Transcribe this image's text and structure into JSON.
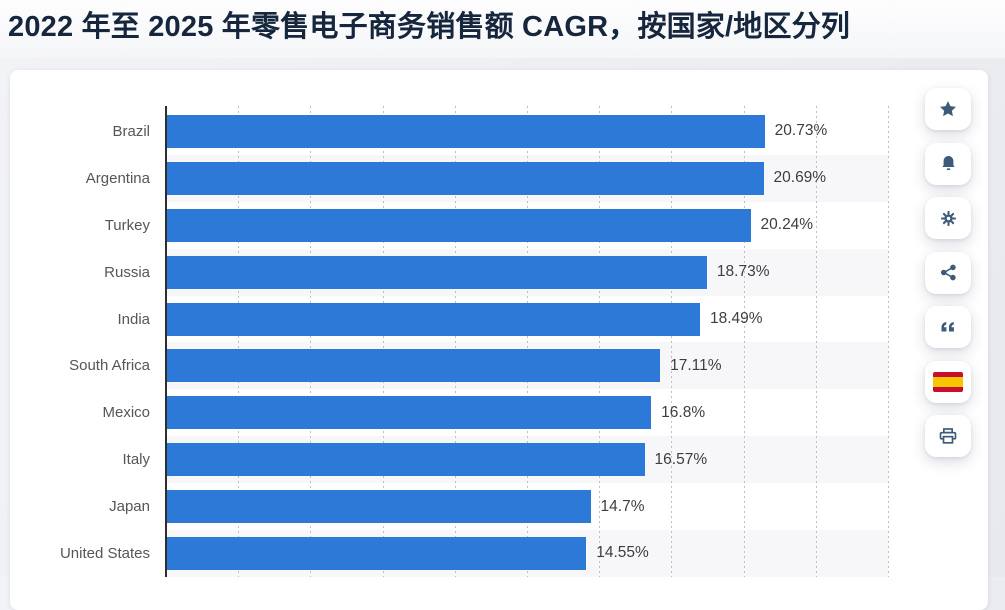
{
  "title": "2022 年至 2025 年零售电子商务销售额 CAGR，按国家/地区分列",
  "chart_data": {
    "type": "bar",
    "orientation": "horizontal",
    "title": "2022 年至 2025 年零售电子商务销售额 CAGR，按国家/地区分列",
    "categories": [
      "Brazil",
      "Argentina",
      "Turkey",
      "Russia",
      "India",
      "South Africa",
      "Mexico",
      "Italy",
      "Japan",
      "United States"
    ],
    "values": [
      20.73,
      20.69,
      20.24,
      18.73,
      18.49,
      17.11,
      16.8,
      16.57,
      14.7,
      14.55
    ],
    "value_labels": [
      "20.73%",
      "20.69%",
      "20.24%",
      "18.73%",
      "18.49%",
      "17.11%",
      "16.8%",
      "16.57%",
      "14.7%",
      "14.55%"
    ],
    "xlabel": "",
    "ylabel": "",
    "xlim": [
      0,
      25
    ],
    "gridline_interval_percent": 2.5,
    "grid": "vertical-dotted",
    "legend_position": "none",
    "bar_color": "#2c79d8",
    "alt_row_color": "#f7f7f9"
  },
  "toolbar": {
    "buttons": [
      {
        "name": "favorite",
        "icon": "star-icon"
      },
      {
        "name": "alerts",
        "icon": "bell-icon"
      },
      {
        "name": "settings",
        "icon": "gear-icon"
      },
      {
        "name": "share",
        "icon": "share-icon"
      },
      {
        "name": "cite",
        "icon": "quote-icon"
      },
      {
        "name": "language-spanish",
        "icon": "spain-flag-icon"
      },
      {
        "name": "print",
        "icon": "printer-icon"
      }
    ]
  },
  "colors": {
    "title_text": "#15263d",
    "bar": "#2c79d8",
    "axis_line": "#2e2e2e",
    "gridline": "#bfbfbf",
    "category_label": "#565659",
    "value_label": "#3e3e42",
    "icon": "#3d5a7a",
    "card_background": "#ffffff",
    "page_background": "#ebedf1",
    "flag_red": "#c8102e",
    "flag_yellow": "#f7c600"
  }
}
